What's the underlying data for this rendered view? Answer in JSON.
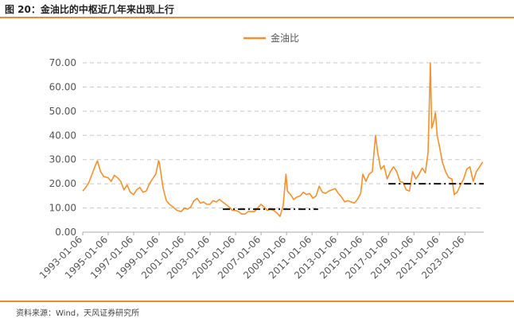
{
  "header": {
    "figure_title": "图 20：金油比的中枢近几年来出现上行"
  },
  "footer": {
    "source": "资料来源：Wind，天风证券研究所"
  },
  "colors": {
    "series": "#f4912e",
    "rule": "#f0882d",
    "grid": "#c8c8c8",
    "reference": "#111111"
  },
  "chart_data": {
    "type": "line",
    "title": "",
    "xlabel": "",
    "ylabel": "",
    "legend_position": "top-center",
    "grid": "horizontal-dashed",
    "ylim": [
      0,
      70
    ],
    "xlim": [
      "1993-01-06",
      "2024-07-01"
    ],
    "yticks": [
      "0.00",
      "10.00",
      "20.00",
      "30.00",
      "40.00",
      "50.00",
      "60.00",
      "70.00"
    ],
    "xticks": [
      "1993-01-06",
      "1995-01-06",
      "1997-01-06",
      "1999-01-06",
      "2001-01-06",
      "2003-01-06",
      "2005-01-06",
      "2007-01-06",
      "2009-01-06",
      "2011-01-06",
      "2013-01-06",
      "2015-01-06",
      "2017-01-06",
      "2019-01-06",
      "2021-01-06",
      "2023-01-06"
    ],
    "series": [
      {
        "name": "金油比",
        "points": [
          [
            "1993-01-06",
            17.0
          ],
          [
            "1993-04-01",
            18.5
          ],
          [
            "1993-07-01",
            20.5
          ],
          [
            "1993-10-01",
            24.0
          ],
          [
            "1994-01-01",
            27.5
          ],
          [
            "1994-03-01",
            29.5
          ],
          [
            "1994-06-01",
            25.0
          ],
          [
            "1994-09-01",
            23.0
          ],
          [
            "1995-01-01",
            22.5
          ],
          [
            "1995-04-01",
            21.0
          ],
          [
            "1995-07-01",
            23.5
          ],
          [
            "1995-10-01",
            22.5
          ],
          [
            "1996-01-01",
            21.0
          ],
          [
            "1996-04-01",
            17.5
          ],
          [
            "1996-07-01",
            19.5
          ],
          [
            "1996-10-01",
            16.5
          ],
          [
            "1997-01-01",
            15.5
          ],
          [
            "1997-04-01",
            17.5
          ],
          [
            "1997-07-01",
            18.5
          ],
          [
            "1997-10-01",
            16.5
          ],
          [
            "1998-01-01",
            17.0
          ],
          [
            "1998-04-01",
            20.0
          ],
          [
            "1998-07-01",
            22.0
          ],
          [
            "1998-10-01",
            24.0
          ],
          [
            "1998-12-20",
            29.5
          ],
          [
            "1999-01-15",
            28.5
          ],
          [
            "1999-03-01",
            24.0
          ],
          [
            "1999-05-01",
            18.0
          ],
          [
            "1999-08-01",
            13.0
          ],
          [
            "1999-11-01",
            11.5
          ],
          [
            "2000-02-01",
            10.5
          ],
          [
            "2000-06-01",
            9.0
          ],
          [
            "2000-10-01",
            8.5
          ],
          [
            "2001-01-01",
            10.0
          ],
          [
            "2001-04-01",
            9.5
          ],
          [
            "2001-07-01",
            10.5
          ],
          [
            "2001-10-01",
            13.0
          ],
          [
            "2002-01-01",
            14.0
          ],
          [
            "2002-04-01",
            12.0
          ],
          [
            "2002-07-01",
            12.5
          ],
          [
            "2002-10-01",
            11.5
          ],
          [
            "2003-01-01",
            11.5
          ],
          [
            "2003-04-01",
            13.0
          ],
          [
            "2003-07-01",
            12.5
          ],
          [
            "2003-10-01",
            13.5
          ],
          [
            "2004-01-01",
            12.5
          ],
          [
            "2004-04-01",
            11.5
          ],
          [
            "2004-07-01",
            10.5
          ],
          [
            "2004-10-01",
            9.0
          ],
          [
            "2005-01-01",
            9.0
          ],
          [
            "2005-04-01",
            8.5
          ],
          [
            "2005-07-01",
            7.5
          ],
          [
            "2005-10-01",
            7.5
          ],
          [
            "2006-01-01",
            8.5
          ],
          [
            "2006-04-01",
            8.5
          ],
          [
            "2006-07-01",
            8.5
          ],
          [
            "2006-10-01",
            10.0
          ],
          [
            "2007-01-01",
            11.5
          ],
          [
            "2007-04-01",
            10.5
          ],
          [
            "2007-07-01",
            9.0
          ],
          [
            "2007-10-01",
            9.5
          ],
          [
            "2008-01-01",
            9.0
          ],
          [
            "2008-04-01",
            8.0
          ],
          [
            "2008-07-01",
            6.5
          ],
          [
            "2008-10-01",
            11.0
          ],
          [
            "2008-12-20",
            24.0
          ],
          [
            "2009-02-01",
            17.0
          ],
          [
            "2009-05-01",
            15.5
          ],
          [
            "2009-08-01",
            13.5
          ],
          [
            "2009-11-01",
            14.5
          ],
          [
            "2010-02-01",
            15.0
          ],
          [
            "2010-05-01",
            16.5
          ],
          [
            "2010-08-01",
            15.5
          ],
          [
            "2010-11-01",
            16.0
          ],
          [
            "2011-02-01",
            14.0
          ],
          [
            "2011-05-01",
            15.0
          ],
          [
            "2011-08-01",
            19.0
          ],
          [
            "2011-11-01",
            16.5
          ],
          [
            "2012-02-01",
            16.0
          ],
          [
            "2012-05-01",
            17.0
          ],
          [
            "2012-08-01",
            17.5
          ],
          [
            "2012-11-01",
            18.0
          ],
          [
            "2013-02-01",
            16.0
          ],
          [
            "2013-05-01",
            14.5
          ],
          [
            "2013-08-01",
            12.5
          ],
          [
            "2013-11-01",
            13.0
          ],
          [
            "2014-02-01",
            12.5
          ],
          [
            "2014-05-01",
            12.0
          ],
          [
            "2014-08-01",
            13.5
          ],
          [
            "2014-11-01",
            16.0
          ],
          [
            "2015-01-01",
            24.0
          ],
          [
            "2015-04-01",
            21.0
          ],
          [
            "2015-07-01",
            24.0
          ],
          [
            "2015-10-01",
            25.0
          ],
          [
            "2016-01-01",
            40.0
          ],
          [
            "2016-03-01",
            33.0
          ],
          [
            "2016-06-01",
            26.0
          ],
          [
            "2016-09-01",
            27.5
          ],
          [
            "2016-12-01",
            22.0
          ],
          [
            "2017-03-01",
            25.0
          ],
          [
            "2017-06-01",
            27.0
          ],
          [
            "2017-09-01",
            25.0
          ],
          [
            "2017-12-01",
            21.0
          ],
          [
            "2018-03-01",
            20.5
          ],
          [
            "2018-06-01",
            17.5
          ],
          [
            "2018-09-01",
            17.0
          ],
          [
            "2018-12-01",
            25.0
          ],
          [
            "2019-03-01",
            22.0
          ],
          [
            "2019-06-01",
            24.0
          ],
          [
            "2019-09-01",
            26.5
          ],
          [
            "2019-12-01",
            24.5
          ],
          [
            "2020-02-15",
            33.0
          ],
          [
            "2020-04-21",
            70.0
          ],
          [
            "2020-06-01",
            43.0
          ],
          [
            "2020-08-01",
            46.0
          ],
          [
            "2020-09-15",
            49.5
          ],
          [
            "2020-11-01",
            40.0
          ],
          [
            "2021-01-01",
            36.0
          ],
          [
            "2021-04-01",
            29.0
          ],
          [
            "2021-07-01",
            25.0
          ],
          [
            "2021-10-01",
            22.5
          ],
          [
            "2022-01-01",
            22.0
          ],
          [
            "2022-03-08",
            15.5
          ],
          [
            "2022-06-01",
            16.5
          ],
          [
            "2022-09-01",
            19.5
          ],
          [
            "2022-12-01",
            22.0
          ],
          [
            "2023-03-01",
            26.0
          ],
          [
            "2023-06-01",
            27.0
          ],
          [
            "2023-09-01",
            21.0
          ],
          [
            "2023-12-01",
            25.0
          ],
          [
            "2024-03-01",
            27.0
          ],
          [
            "2024-06-01",
            29.0
          ]
        ]
      }
    ],
    "reference_lines": [
      {
        "style": "dash-dot",
        "value": 9.5,
        "from": "2004-01-06",
        "to": "2011-07-01"
      },
      {
        "style": "dash-dot",
        "value": 20.0,
        "from": "2017-01-06",
        "to": "2024-07-01"
      }
    ]
  }
}
